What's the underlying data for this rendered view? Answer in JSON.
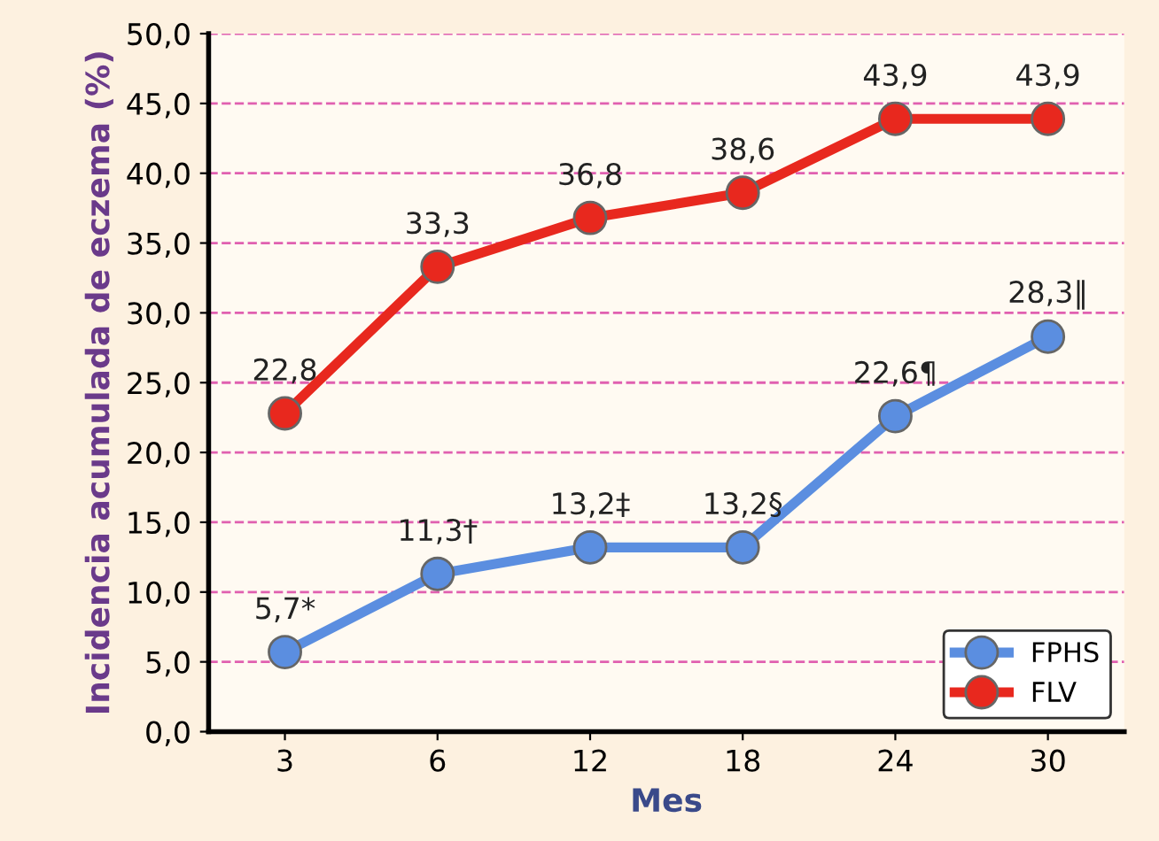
{
  "chart_data": {
    "type": "line",
    "xlabel": "Mes",
    "ylabel": "Incidencia acumulada de eczema (%)",
    "categories": [
      "3",
      "6",
      "12",
      "18",
      "24",
      "30"
    ],
    "series": [
      {
        "name": "FPHS",
        "color": "#5b8ee0",
        "values": [
          5.7,
          11.3,
          13.2,
          13.2,
          22.6,
          28.3
        ],
        "value_labels": [
          "5,7*",
          "11,3†",
          "13,2‡",
          "13,2§",
          "22,6¶",
          "28,3‖"
        ]
      },
      {
        "name": "FLV",
        "color": "#e8281e",
        "values": [
          22.8,
          33.3,
          36.8,
          38.6,
          43.9,
          43.9
        ],
        "value_labels": [
          "22,8",
          "33,3",
          "36,8",
          "38,6",
          "43,9",
          "43,9"
        ]
      }
    ],
    "ylim": [
      0,
      50
    ],
    "yticks": [
      {
        "value": 0,
        "label": "0,0"
      },
      {
        "value": 5,
        "label": "5,0"
      },
      {
        "value": 10,
        "label": "10,0"
      },
      {
        "value": 15,
        "label": "15,0"
      },
      {
        "value": 20,
        "label": "20,0"
      },
      {
        "value": 25,
        "label": "25,0"
      },
      {
        "value": 30,
        "label": "30,0"
      },
      {
        "value": 35,
        "label": "35,0"
      },
      {
        "value": 40,
        "label": "40,0"
      },
      {
        "value": 45,
        "label": "45,0"
      },
      {
        "value": 50,
        "label": "50,0"
      }
    ],
    "grid": "y",
    "legend": "bottom right",
    "marker": "circle",
    "line_style": "solid"
  }
}
